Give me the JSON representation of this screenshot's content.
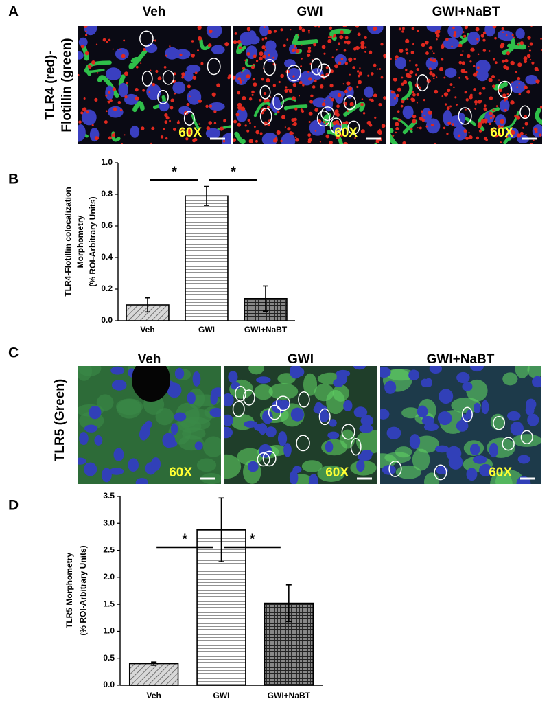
{
  "panel_labels": [
    "A",
    "B",
    "C",
    "D"
  ],
  "image_panels": [
    {
      "ylabel": [
        "TLR4 (red)-",
        "Flotillin (green)"
      ],
      "images": [
        {
          "title": "Veh",
          "magnification": "60X"
        },
        {
          "title": "GWI",
          "magnification": "60X"
        },
        {
          "title": "GWI+NaBT",
          "magnification": "60X"
        }
      ]
    },
    {
      "ylabel": [
        "TLR5 (Green)"
      ],
      "images": [
        {
          "title": "Veh",
          "magnification": "60X"
        },
        {
          "title": "GWI",
          "magnification": "60X"
        },
        {
          "title": "GWI+NaBT",
          "magnification": "60X"
        }
      ]
    }
  ],
  "chart_data": [
    {
      "type": "bar",
      "ylabel": [
        "TLR4-Flotillin colocalization",
        "Morphometry",
        "(% ROI-Arbitrary Units)"
      ],
      "categories": [
        "Veh",
        "GWI",
        "GWI+NaBT"
      ],
      "values": [
        0.1,
        0.79,
        0.14
      ],
      "errors": [
        0.045,
        0.06,
        0.08
      ],
      "pattern": [
        "diagonal",
        "horizontal",
        "grid"
      ],
      "color": "#000000",
      "significance": [
        "*",
        "*"
      ],
      "ylim": [
        0,
        1.0
      ],
      "yticks": [
        {
          "value": 0,
          "label": "0.0"
        },
        0.2,
        0.4,
        0.6,
        0.8,
        {
          "value": 1,
          "label": "1.0"
        }
      ]
    },
    {
      "type": "bar",
      "ylabel": [
        "TLR5 Morphometry",
        "(% ROI-Arbitrary Units)"
      ],
      "categories": [
        "Veh",
        "GWI",
        "GWI+NaBT"
      ],
      "values": [
        0.4,
        2.88,
        1.52
      ],
      "errors": [
        0.03,
        0.59,
        0.34
      ],
      "pattern": [
        "diagonal",
        "horizontal",
        "grid"
      ],
      "color": "#000000",
      "significance": [
        "*",
        "*"
      ],
      "ylim": [
        0,
        3.5
      ],
      "yticks": [
        {
          "value": 0,
          "label": "0.0"
        },
        0.5,
        {
          "value": 1,
          "label": "1.0"
        },
        1.5,
        {
          "value": 2,
          "label": "2.0"
        },
        2.5,
        {
          "value": 3,
          "label": "3.0"
        },
        3.5
      ]
    }
  ]
}
